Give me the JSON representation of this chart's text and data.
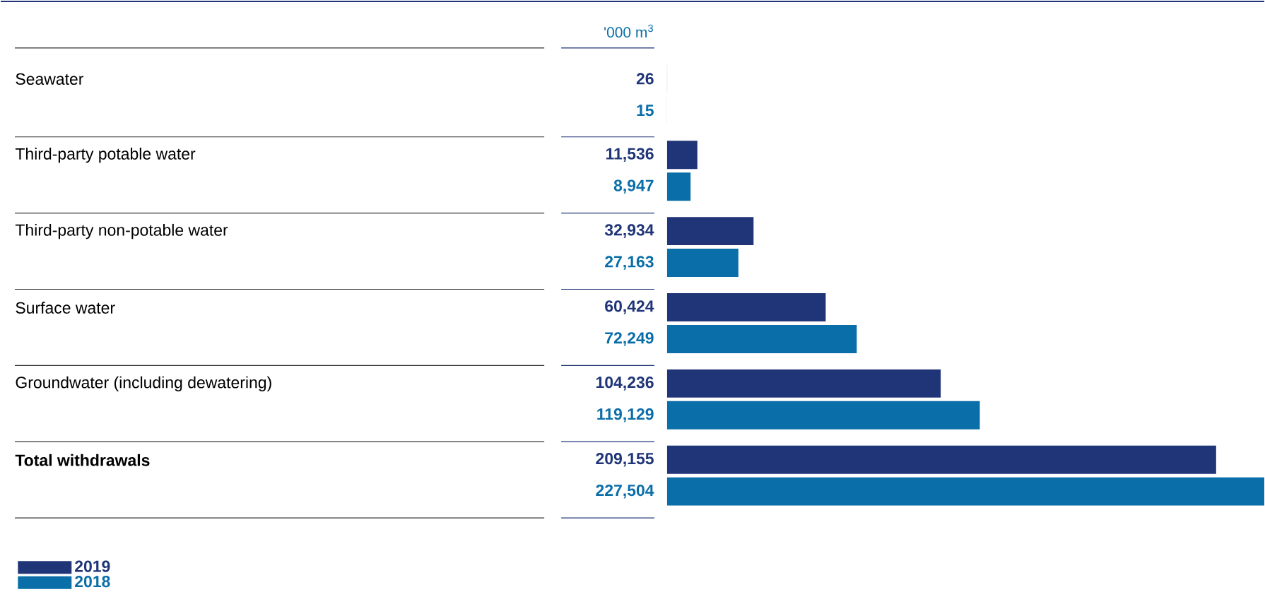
{
  "chart_data": {
    "type": "bar",
    "orientation": "horizontal",
    "annotations": [
      "'000 m$^{3}$"
    ],
    "categories": [
      "Seawater",
      "Third-party potable water",
      "Third-party non-potable water",
      "Surface water",
      "Groundwater (including dewatering)",
      "Total withdrawals"
    ],
    "series": [
      {
        "name": "2019",
        "color": "#1f3577",
        "values": [
          26,
          11536,
          32934,
          60424,
          104236,
          209155
        ],
        "value_labels": [
          "26",
          "11,536",
          "32,934",
          "60,424",
          "104,236",
          "209,155"
        ]
      },
      {
        "name": "2018",
        "color": "#0a6ea8",
        "values": [
          15,
          8947,
          27163,
          72249,
          119129,
          227504
        ],
        "value_labels": [
          "15",
          "8,947",
          "27,163",
          "72,249",
          "119,129",
          "227,504"
        ]
      }
    ],
    "relative": false,
    "legend": "bottom left"
  }
}
